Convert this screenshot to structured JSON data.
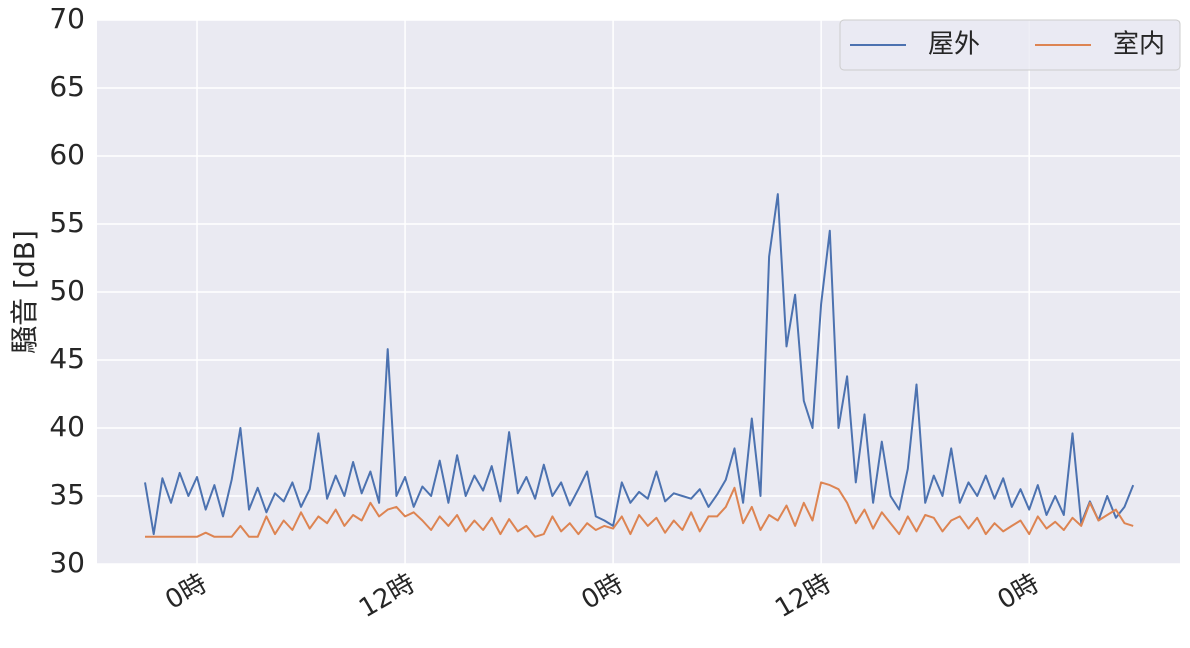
{
  "chart_data": {
    "type": "line",
    "ylabel": "騒音 [dB]",
    "x": [
      -3,
      -2.5,
      -2,
      -1.5,
      -1,
      -0.5,
      0,
      0.5,
      1,
      1.5,
      2,
      2.5,
      3,
      3.5,
      4,
      4.5,
      5,
      5.5,
      6,
      6.5,
      7,
      7.5,
      8,
      8.5,
      9,
      9.5,
      10,
      10.5,
      11,
      11.5,
      12,
      12.5,
      13,
      13.5,
      14,
      14.5,
      15,
      15.5,
      16,
      16.5,
      17,
      17.5,
      18,
      18.5,
      19,
      19.5,
      20,
      20.5,
      21,
      21.5,
      22,
      22.5,
      23,
      23.5,
      24,
      24.5,
      25,
      25.5,
      26,
      26.5,
      27,
      27.5,
      28,
      28.5,
      29,
      29.5,
      30,
      30.5,
      31,
      31.5,
      32,
      32.5,
      33,
      33.5,
      34,
      34.5,
      35,
      35.5,
      36,
      36.5,
      37,
      37.5,
      38,
      38.5,
      39,
      39.5,
      40,
      40.5,
      41,
      41.5,
      42,
      42.5,
      43,
      43.5,
      44,
      44.5,
      45,
      45.5,
      46,
      46.5,
      47,
      47.5,
      48,
      48.5,
      49,
      49.5,
      50,
      50.5,
      51,
      51.5,
      52,
      52.5,
      53,
      53.5,
      54
    ],
    "series": [
      {
        "name": "屋外",
        "color": "#4c72b0",
        "values": [
          36,
          32.2,
          36.3,
          34.5,
          36.7,
          35,
          36.4,
          34,
          35.8,
          33.5,
          36.2,
          40,
          34,
          35.6,
          33.8,
          35.2,
          34.6,
          36,
          34.2,
          35.5,
          39.6,
          34.8,
          36.5,
          35,
          37.5,
          35.2,
          36.8,
          34.5,
          45.8,
          35,
          36.4,
          34.2,
          35.7,
          35,
          37.6,
          34.5,
          38,
          35,
          36.5,
          35.4,
          37.2,
          34.6,
          39.7,
          35.2,
          36.4,
          34.8,
          37.3,
          35,
          36,
          34.3,
          35.5,
          36.8,
          33.5,
          33.2,
          32.8,
          36,
          34.5,
          35.3,
          34.8,
          36.8,
          34.6,
          35.2,
          35,
          34.8,
          35.5,
          34.2,
          35.1,
          36.2,
          38.5,
          34.5,
          40.7,
          35,
          52.6,
          57.2,
          46,
          49.8,
          42,
          40,
          49.1,
          54.5,
          40,
          43.8,
          36,
          41,
          34.5,
          39,
          35,
          34,
          37,
          43.2,
          34.5,
          36.5,
          35,
          38.5,
          34.5,
          36,
          35,
          36.5,
          34.8,
          36.3,
          34.2,
          35.5,
          34,
          35.8,
          33.6,
          35,
          33.6,
          39.6,
          33,
          34.6,
          33.2,
          35,
          33.4,
          34.2,
          35.8
        ]
      },
      {
        "name": "室内",
        "color": "#dd8452",
        "values": [
          32,
          32,
          32,
          32,
          32,
          32,
          32,
          32.3,
          32,
          32,
          32,
          32.8,
          32,
          32,
          33.5,
          32.2,
          33.2,
          32.5,
          33.8,
          32.6,
          33.5,
          33,
          34,
          32.8,
          33.6,
          33.2,
          34.5,
          33.5,
          34,
          34.2,
          33.5,
          33.8,
          33.2,
          32.5,
          33.5,
          32.8,
          33.6,
          32.4,
          33.2,
          32.5,
          33.4,
          32.2,
          33.3,
          32.4,
          32.8,
          32,
          32.2,
          33.5,
          32.4,
          33,
          32.2,
          33,
          32.5,
          32.8,
          32.6,
          33.5,
          32.2,
          33.6,
          32.8,
          33.4,
          32.3,
          33.2,
          32.5,
          33.8,
          32.4,
          33.5,
          33.5,
          34.2,
          35.6,
          33,
          34.2,
          32.5,
          33.6,
          33.2,
          34.3,
          32.8,
          34.5,
          33.2,
          36,
          35.8,
          35.5,
          34.5,
          33,
          34,
          32.6,
          33.8,
          33,
          32.2,
          33.5,
          32.4,
          33.6,
          33.4,
          32.4,
          33.2,
          33.5,
          32.6,
          33.4,
          32.2,
          33,
          32.4,
          32.8,
          33.2,
          32.2,
          33.5,
          32.6,
          33.1,
          32.5,
          33.4,
          32.8,
          34.5,
          33.2,
          33.6,
          34,
          33,
          32.8
        ]
      }
    ],
    "xlim": [
      -5.77,
      56.7
    ],
    "xticks": [
      {
        "value": 0,
        "label": "0時"
      },
      {
        "value": 12,
        "label": "12時"
      },
      {
        "value": 24,
        "label": "0時"
      },
      {
        "value": 36,
        "label": "12時"
      },
      {
        "value": 48,
        "label": "0時"
      }
    ],
    "ylim": [
      30,
      70
    ],
    "yticks": [
      30,
      35,
      40,
      45,
      50,
      55,
      60,
      65,
      70
    ],
    "grid": true,
    "legend": "upper right"
  }
}
